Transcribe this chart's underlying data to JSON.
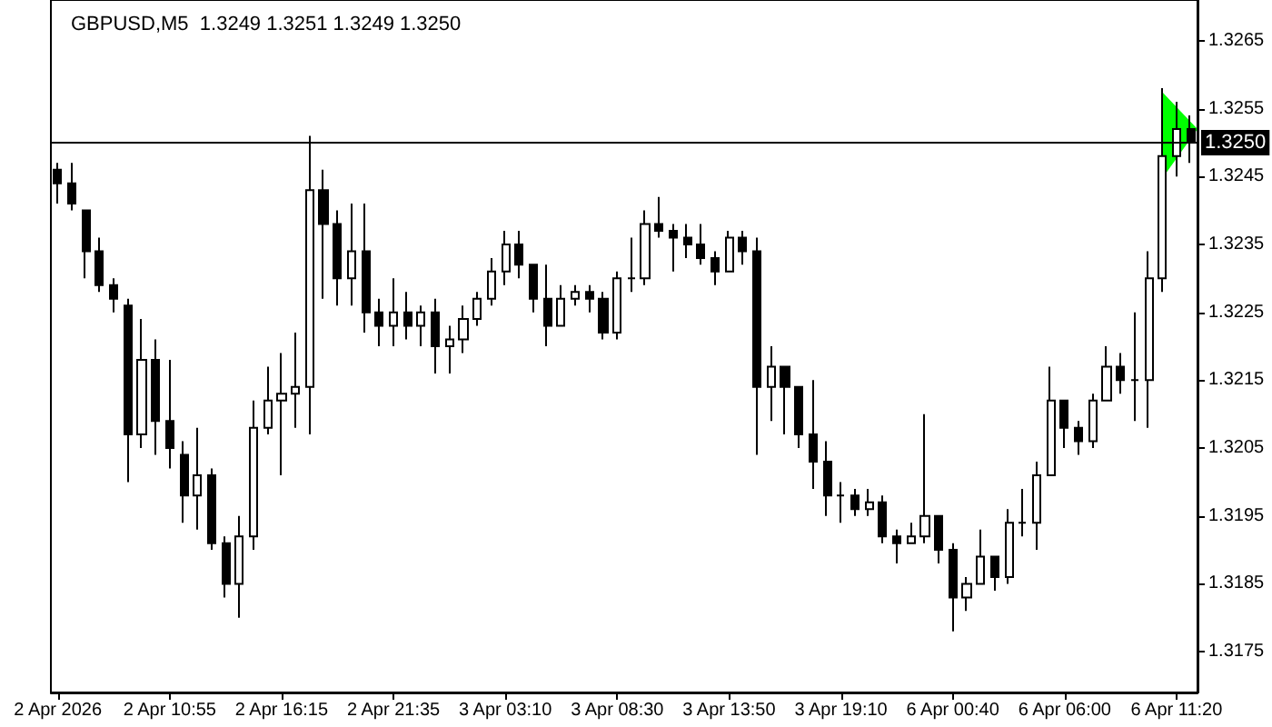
{
  "chart_data": {
    "type": "candlestick",
    "title": "GBPUSD,M5  1.3249 1.3251 1.3249 1.3250",
    "categories": [
      "2 Apr 2026",
      null,
      null,
      null,
      null,
      null,
      null,
      null,
      "2 Apr 10:55",
      null,
      null,
      null,
      null,
      null,
      null,
      null,
      "2 Apr 16:15",
      null,
      null,
      null,
      null,
      null,
      null,
      null,
      "2 Apr 21:35",
      null,
      null,
      null,
      null,
      null,
      null,
      null,
      "3 Apr 03:10",
      null,
      null,
      null,
      null,
      null,
      null,
      null,
      "3 Apr 08:30",
      null,
      null,
      null,
      null,
      null,
      null,
      null,
      "3 Apr 13:50",
      null,
      null,
      null,
      null,
      null,
      null,
      null,
      "3 Apr 19:10",
      null,
      null,
      null,
      null,
      null,
      null,
      null,
      "6 Apr 00:40",
      null,
      null,
      null,
      null,
      null,
      null,
      null,
      "6 Apr 06:00",
      null,
      null,
      null,
      null,
      null,
      null,
      null,
      "6 Apr 11:20",
      null
    ],
    "ohlc": [
      [
        1.3246,
        1.3247,
        1.3241,
        1.3244
      ],
      [
        1.3244,
        1.3247,
        1.324,
        1.3241
      ],
      [
        1.324,
        1.324,
        1.323,
        1.3234
      ],
      [
        1.3234,
        1.3236,
        1.3228,
        1.3229
      ],
      [
        1.3229,
        1.323,
        1.3225,
        1.3227
      ],
      [
        1.3226,
        1.3227,
        1.32,
        1.3207
      ],
      [
        1.3207,
        1.3224,
        1.3205,
        1.3218
      ],
      [
        1.3218,
        1.3221,
        1.3204,
        1.3209
      ],
      [
        1.3209,
        1.3218,
        1.3202,
        1.3205
      ],
      [
        1.3204,
        1.3206,
        1.3194,
        1.3198
      ],
      [
        1.3198,
        1.3208,
        1.3193,
        1.3201
      ],
      [
        1.3201,
        1.3202,
        1.319,
        1.3191
      ],
      [
        1.3191,
        1.3192,
        1.3183,
        1.3185
      ],
      [
        1.3185,
        1.3195,
        1.318,
        1.3192
      ],
      [
        1.3192,
        1.3212,
        1.319,
        1.3208
      ],
      [
        1.3208,
        1.3217,
        1.3207,
        1.3212
      ],
      [
        1.3212,
        1.3219,
        1.3201,
        1.3213
      ],
      [
        1.3213,
        1.3222,
        1.3208,
        1.3214
      ],
      [
        1.3214,
        1.3251,
        1.3207,
        1.3243
      ],
      [
        1.3243,
        1.3246,
        1.3227,
        1.3238
      ],
      [
        1.3238,
        1.324,
        1.3226,
        1.323
      ],
      [
        1.323,
        1.3241,
        1.3226,
        1.3234
      ],
      [
        1.3234,
        1.3241,
        1.3222,
        1.3225
      ],
      [
        1.3225,
        1.3227,
        1.322,
        1.3223
      ],
      [
        1.3223,
        1.323,
        1.322,
        1.3225
      ],
      [
        1.3225,
        1.3228,
        1.3221,
        1.3223
      ],
      [
        1.3223,
        1.3226,
        1.322,
        1.3225
      ],
      [
        1.3225,
        1.3227,
        1.3216,
        1.322
      ],
      [
        1.322,
        1.3223,
        1.3216,
        1.3221
      ],
      [
        1.3221,
        1.3226,
        1.3219,
        1.3224
      ],
      [
        1.3224,
        1.3228,
        1.3223,
        1.3227
      ],
      [
        1.3227,
        1.3233,
        1.3226,
        1.3231
      ],
      [
        1.3231,
        1.3237,
        1.3229,
        1.3235
      ],
      [
        1.3235,
        1.3237,
        1.323,
        1.3232
      ],
      [
        1.3232,
        1.3232,
        1.3225,
        1.3227
      ],
      [
        1.3227,
        1.3232,
        1.322,
        1.3223
      ],
      [
        1.3223,
        1.3229,
        1.3223,
        1.3227
      ],
      [
        1.3227,
        1.3229,
        1.3226,
        1.3228
      ],
      [
        1.3228,
        1.3229,
        1.3225,
        1.3227
      ],
      [
        1.3227,
        1.3228,
        1.3221,
        1.3222
      ],
      [
        1.3222,
        1.3231,
        1.3221,
        1.323
      ],
      [
        1.323,
        1.3236,
        1.3228,
        1.323
      ],
      [
        1.323,
        1.324,
        1.3229,
        1.3238
      ],
      [
        1.3238,
        1.3242,
        1.3236,
        1.3237
      ],
      [
        1.3237,
        1.3238,
        1.3231,
        1.3236
      ],
      [
        1.3236,
        1.3238,
        1.3233,
        1.3235
      ],
      [
        1.3235,
        1.3238,
        1.3232,
        1.3233
      ],
      [
        1.3233,
        1.3234,
        1.3229,
        1.3231
      ],
      [
        1.3231,
        1.3237,
        1.3231,
        1.3236
      ],
      [
        1.3236,
        1.3237,
        1.3232,
        1.3234
      ],
      [
        1.3234,
        1.3236,
        1.3204,
        1.3214
      ],
      [
        1.3214,
        1.322,
        1.3209,
        1.3217
      ],
      [
        1.3217,
        1.3217,
        1.3207,
        1.3214
      ],
      [
        1.3214,
        1.3214,
        1.3205,
        1.3207
      ],
      [
        1.3207,
        1.3215,
        1.3199,
        1.3203
      ],
      [
        1.3203,
        1.3206,
        1.3195,
        1.3198
      ],
      [
        1.3198,
        1.32,
        1.3194,
        1.3198
      ],
      [
        1.3198,
        1.3199,
        1.3195,
        1.3196
      ],
      [
        1.3196,
        1.3199,
        1.3195,
        1.3197
      ],
      [
        1.3197,
        1.3198,
        1.3191,
        1.3192
      ],
      [
        1.3192,
        1.3193,
        1.3188,
        1.3191
      ],
      [
        1.3191,
        1.3194,
        1.3191,
        1.3192
      ],
      [
        1.3192,
        1.321,
        1.3191,
        1.3195
      ],
      [
        1.3195,
        1.3195,
        1.3188,
        1.319
      ],
      [
        1.319,
        1.3191,
        1.3178,
        1.3183
      ],
      [
        1.3183,
        1.3186,
        1.3181,
        1.3185
      ],
      [
        1.3185,
        1.3193,
        1.3185,
        1.3189
      ],
      [
        1.3189,
        1.3189,
        1.3184,
        1.3186
      ],
      [
        1.3186,
        1.3196,
        1.3185,
        1.3194
      ],
      [
        1.3194,
        1.3199,
        1.3192,
        1.3194
      ],
      [
        1.3194,
        1.3203,
        1.319,
        1.3201
      ],
      [
        1.3201,
        1.3217,
        1.3201,
        1.3212
      ],
      [
        1.3212,
        1.3212,
        1.3205,
        1.3208
      ],
      [
        1.3208,
        1.3209,
        1.3204,
        1.3206
      ],
      [
        1.3206,
        1.3213,
        1.3205,
        1.3212
      ],
      [
        1.3212,
        1.322,
        1.3212,
        1.3217
      ],
      [
        1.3217,
        1.3219,
        1.3213,
        1.3215
      ],
      [
        1.3215,
        1.3225,
        1.3209,
        1.3215
      ],
      [
        1.3215,
        1.3234,
        1.3208,
        1.323
      ],
      [
        1.323,
        1.3258,
        1.3228,
        1.3248
      ],
      [
        1.3248,
        1.3256,
        1.3245,
        1.3252
      ],
      [
        1.3252,
        1.3254,
        1.3247,
        1.325
      ]
    ],
    "color": "#000000",
    "ylim": [
      1.3169,
      1.3271
    ],
    "yticks": [
      1.3175,
      1.3185,
      1.3195,
      1.3205,
      1.3215,
      1.3225,
      1.3235,
      1.3245,
      1.3255,
      1.3265
    ],
    "ref_lines": [
      {
        "axis": "y",
        "value": 1.325,
        "label": "1.3250",
        "color": "#000000"
      }
    ]
  }
}
